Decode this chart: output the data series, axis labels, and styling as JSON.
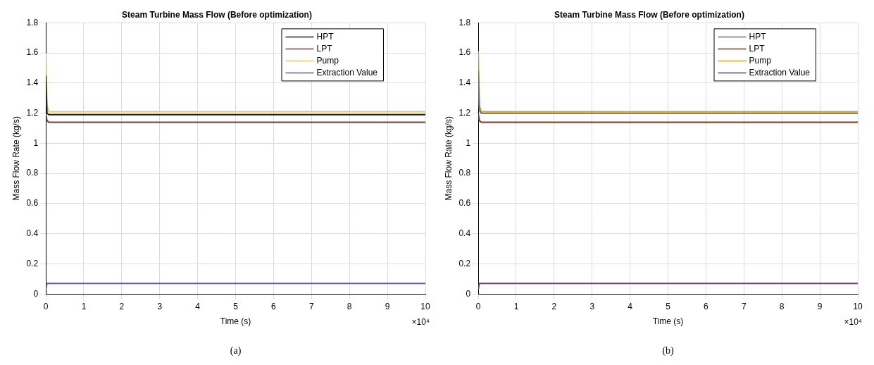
{
  "chart_data": [
    {
      "type": "line",
      "title": "Steam Turbine Mass Flow (Before optimization)",
      "xlabel": "Time (s)",
      "ylabel": "Mass Flow Rate (kg/s)",
      "annotations": [
        "×10⁴",
        "(a)"
      ],
      "x": [
        0,
        0.03,
        0.08,
        10
      ],
      "series": [
        {
          "name": "HPT",
          "color": "#202020",
          "values": [
            1.45,
            1.2,
            1.19,
            1.19
          ]
        },
        {
          "name": "LPT",
          "color": "#7a3a3a",
          "values": [
            1.2,
            1.15,
            1.14,
            1.14
          ]
        },
        {
          "name": "Pump",
          "color": "#e8c870",
          "values": [
            1.6,
            1.25,
            1.21,
            1.21
          ]
        },
        {
          "name": "Extraction Value",
          "color": "#7050a0",
          "values": [
            0.03,
            0.07,
            0.07,
            0.07
          ]
        }
      ],
      "xlim": [
        0,
        10
      ],
      "xticks": [
        0,
        1,
        2,
        3,
        4,
        5,
        6,
        7,
        8,
        9,
        10
      ],
      "ylim": [
        0,
        1.8
      ],
      "yticks": [
        0,
        0.2,
        0.4,
        0.6,
        0.8,
        1,
        1.2,
        1.4,
        1.6,
        1.8
      ],
      "grid": true,
      "legend": "top right"
    },
    {
      "type": "line",
      "title": "Steam Turbine Mass Flow (Before optimization)",
      "xlabel": "Time (s)",
      "ylabel": "Mass Flow Rate (kg/s)",
      "annotations": [
        "×10⁴",
        "(b)"
      ],
      "x": [
        0,
        0.03,
        0.08,
        10
      ],
      "series": [
        {
          "name": "HPT",
          "color": "#607080",
          "values": [
            1.48,
            1.22,
            1.2,
            1.2
          ]
        },
        {
          "name": "LPT",
          "color": "#8a3020",
          "values": [
            1.2,
            1.15,
            1.14,
            1.14
          ]
        },
        {
          "name": "Pump",
          "color": "#e0a020",
          "values": [
            1.61,
            1.25,
            1.21,
            1.21
          ]
        },
        {
          "name": "Extraction Value",
          "color": "#6a3a7a",
          "values": [
            0.03,
            0.07,
            0.07,
            0.07
          ]
        }
      ],
      "xlim": [
        0,
        10
      ],
      "xticks": [
        0,
        1,
        2,
        3,
        4,
        5,
        6,
        7,
        8,
        9,
        10
      ],
      "ylim": [
        0,
        1.8
      ],
      "yticks": [
        0,
        0.2,
        0.4,
        0.6,
        0.8,
        1,
        1.2,
        1.4,
        1.6,
        1.8
      ],
      "grid": true,
      "legend": "top right"
    }
  ]
}
